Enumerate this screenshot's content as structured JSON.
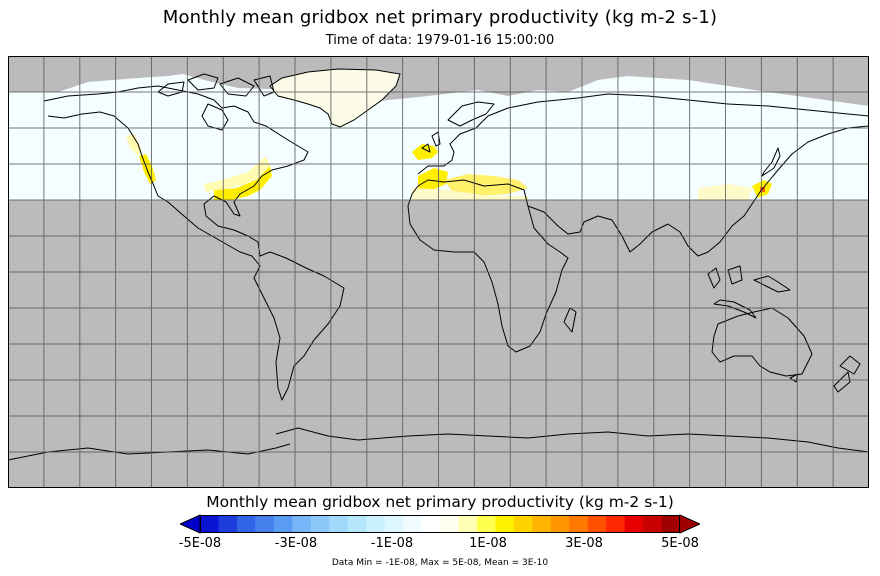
{
  "title": "Monthly mean gridbox net primary productivity (kg m-2 s-1)",
  "subtitle": "Time of data: 1979-01-16 15:00:00",
  "colorbar": {
    "title": "Monthly mean gridbox net primary productivity (kg m-2 s-1)",
    "ticks": [
      "-5E-08",
      "-3E-08",
      "-1E-08",
      "1E-08",
      "3E-08",
      "5E-08"
    ],
    "min": -5e-08,
    "max": 5e-08,
    "colors": [
      "#0a14d2",
      "#1e3cdc",
      "#3264e6",
      "#4682ee",
      "#5a9cf4",
      "#78b4f8",
      "#8cc8fa",
      "#a0d8fc",
      "#b4e6fc",
      "#c8f0fe",
      "#dcf6ff",
      "#f0fbff",
      "#ffffff",
      "#fffff0",
      "#ffffb4",
      "#ffff50",
      "#fff000",
      "#ffd200",
      "#ffb400",
      "#ff9600",
      "#ff7800",
      "#ff5000",
      "#ff2800",
      "#e60000",
      "#c80000",
      "#a00000"
    ],
    "under_color": "#0000c8",
    "over_color": "#a00000"
  },
  "stats": "Data Min = -1E-08, Max = 5E-08, Mean = 3E-10",
  "map": {
    "projection": "cylindrical equidistant",
    "lon_range": [
      -180,
      180
    ],
    "lat_range": [
      -90,
      90
    ],
    "gridline_spacing_deg": 15,
    "missing_color": "#bbbbbb",
    "field_color": "#f4fdff",
    "land_ice_color": "#fbfbe8",
    "high_value_color": "#ffee00",
    "peak_color": "#ff6a00"
  }
}
